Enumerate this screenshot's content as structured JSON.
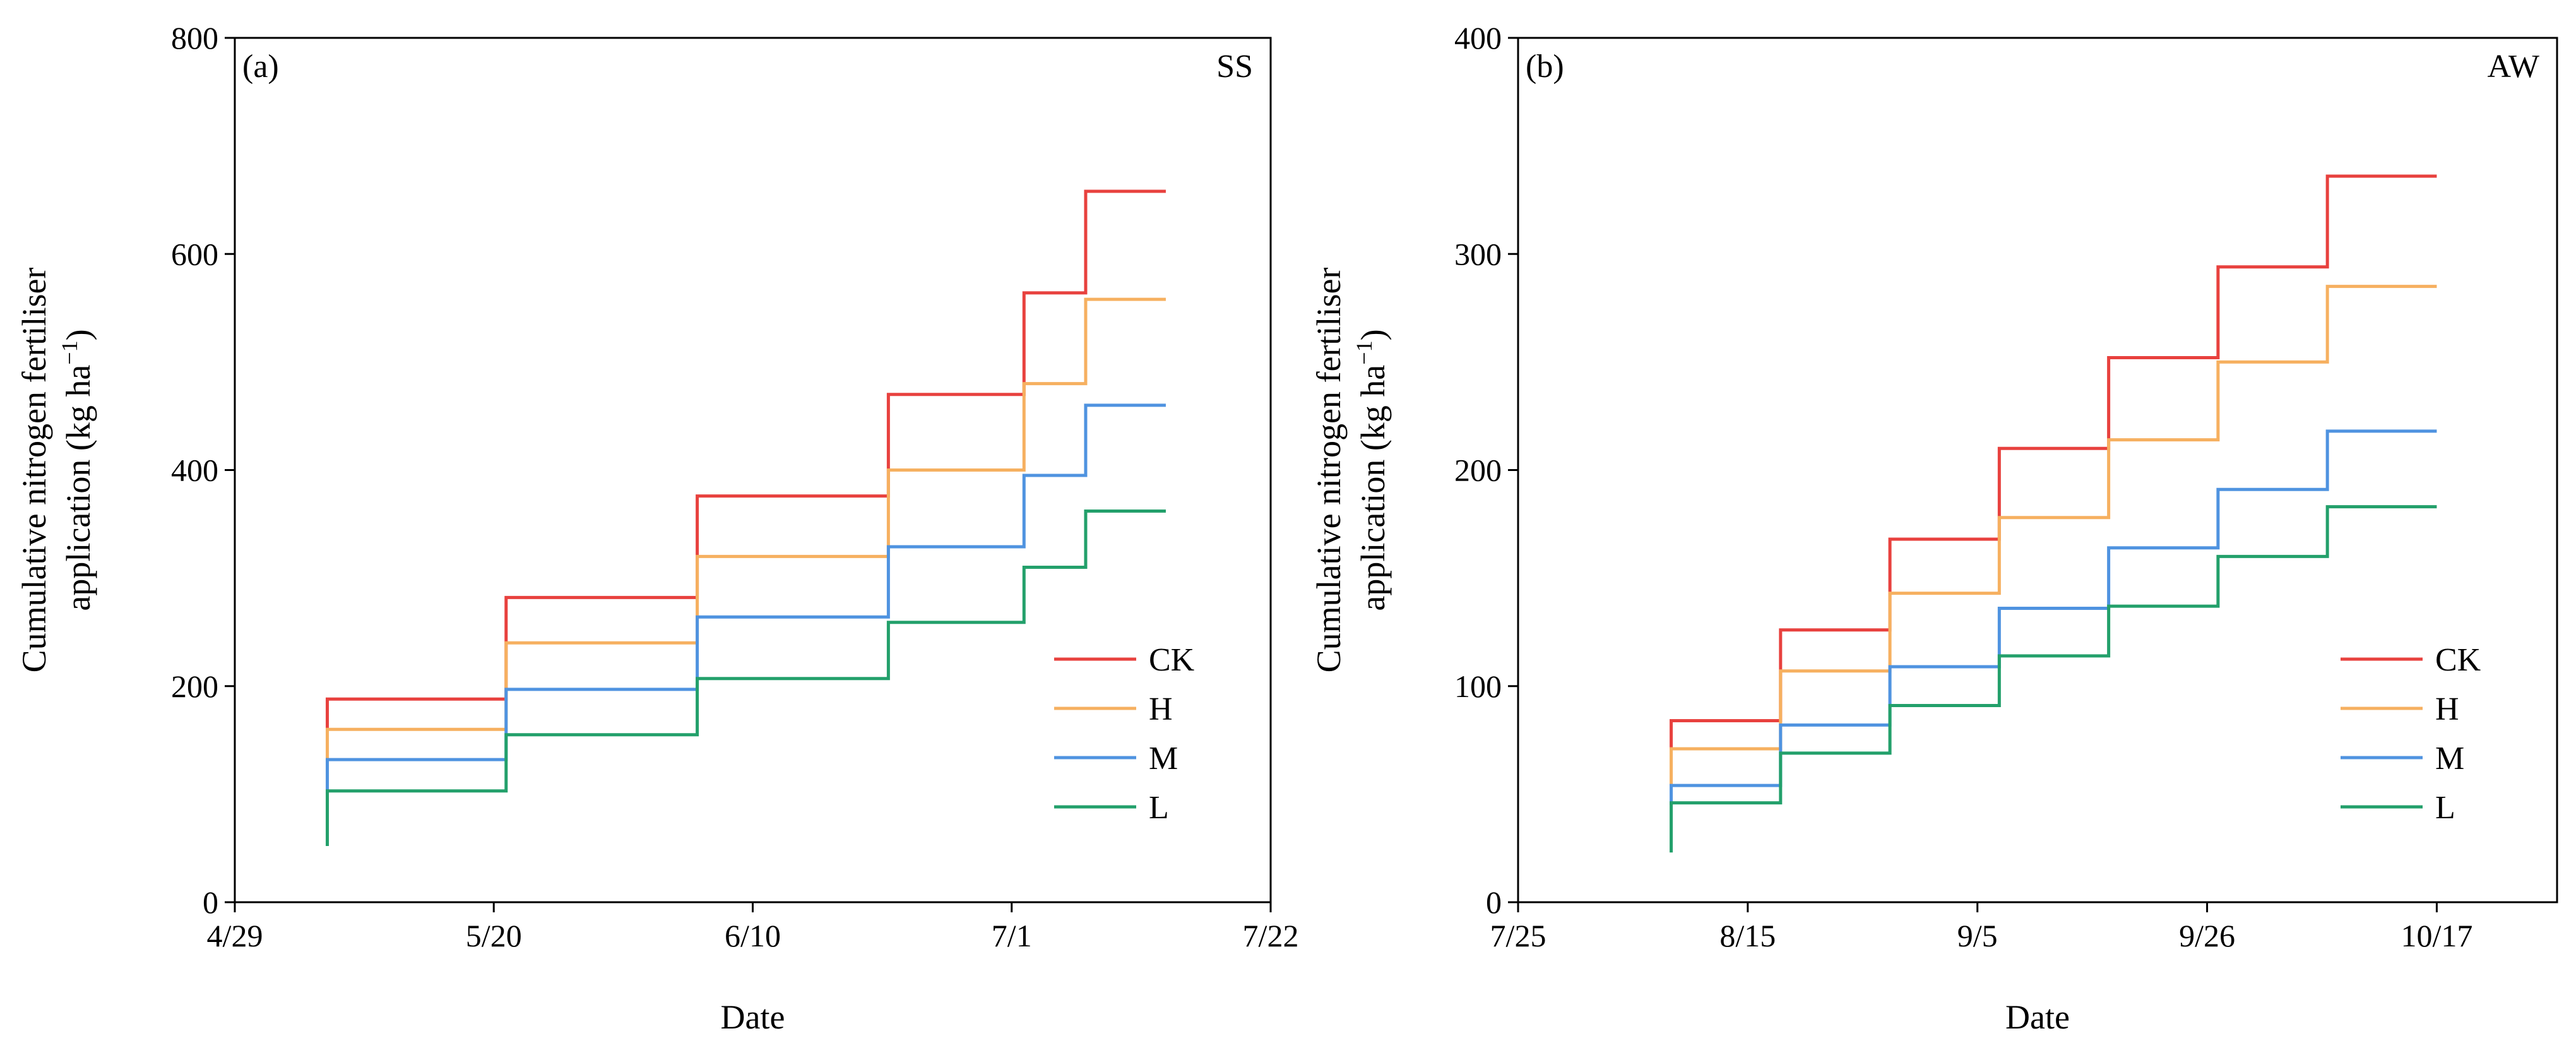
{
  "chart_data": [
    {
      "type": "line",
      "step": true,
      "panel_label": "(a)",
      "title": "SS",
      "xlabel": "Date",
      "ylabel_line1": "Cumulative nitrogen fertiliser",
      "ylabel_line2": "application (kg ha",
      "ylabel_sup": "−1",
      "ylabel_close": ")",
      "xlim": [
        0,
        84
      ],
      "ylim": [
        0,
        800
      ],
      "x_ticks": [
        0,
        21,
        42,
        63,
        84
      ],
      "x_tick_labels": [
        "4/29",
        "5/20",
        "6/10",
        "7/1",
        "7/22"
      ],
      "y_ticks": [
        0,
        200,
        400,
        600,
        800
      ],
      "y_tick_labels": [
        "0",
        "200",
        "400",
        "600",
        "800"
      ],
      "legend": [
        "CK",
        "H",
        "M",
        "L"
      ],
      "legend_position": "lower-right",
      "series": [
        {
          "name": "CK",
          "color": "#e8413e",
          "x_start": 7.5,
          "x_end": 75.5,
          "start_value": 160,
          "steps": [
            [
              7.5,
              188
            ],
            [
              22,
              282
            ],
            [
              37.5,
              376
            ],
            [
              53,
              470
            ],
            [
              64,
              564
            ],
            [
              69,
              658
            ]
          ]
        },
        {
          "name": "H",
          "color": "#f6b060",
          "x_start": 7.5,
          "x_end": 75.5,
          "start_value": 130,
          "steps": [
            [
              7.5,
              160
            ],
            [
              22,
              240
            ],
            [
              37.5,
              320
            ],
            [
              53,
              400
            ],
            [
              64,
              480
            ],
            [
              69,
              558
            ]
          ]
        },
        {
          "name": "M",
          "color": "#4f93e0",
          "x_start": 7.5,
          "x_end": 75.5,
          "start_value": 100,
          "steps": [
            [
              7.5,
              132
            ],
            [
              22,
              197
            ],
            [
              37.5,
              264
            ],
            [
              53,
              329
            ],
            [
              64,
              395
            ],
            [
              69,
              460
            ]
          ]
        },
        {
          "name": "L",
          "color": "#23a06b",
          "x_start": 7.5,
          "x_end": 75.5,
          "start_value": 52,
          "steps": [
            [
              7.5,
              103
            ],
            [
              22,
              155
            ],
            [
              37.5,
              207
            ],
            [
              53,
              259
            ],
            [
              64,
              310
            ],
            [
              69,
              362
            ]
          ]
        }
      ]
    },
    {
      "type": "line",
      "step": true,
      "panel_label": "(b)",
      "title": "AW",
      "xlabel": "Date",
      "ylabel_line1": "Cumulative nitrogen fertiliser",
      "ylabel_line2": "application (kg ha",
      "ylabel_sup": "−1",
      "ylabel_close": ")",
      "xlim": [
        0,
        95
      ],
      "ylim": [
        0,
        400
      ],
      "x_ticks": [
        0,
        21,
        42,
        63,
        84
      ],
      "x_tick_labels": [
        "7/25",
        "8/15",
        "9/5",
        "9/26",
        "10/17"
      ],
      "y_ticks": [
        0,
        100,
        200,
        300,
        400
      ],
      "y_tick_labels": [
        "0",
        "100",
        "200",
        "300",
        "400"
      ],
      "legend": [
        "CK",
        "H",
        "M",
        "L"
      ],
      "legend_position": "lower-right",
      "series": [
        {
          "name": "CK",
          "color": "#e8413e",
          "x_start": 14,
          "x_end": 84,
          "start_value": 71,
          "steps": [
            [
              14,
              84
            ],
            [
              24,
              126
            ],
            [
              34,
              168
            ],
            [
              44,
              210
            ],
            [
              54,
              252
            ],
            [
              64,
              294
            ],
            [
              74,
              336
            ]
          ]
        },
        {
          "name": "H",
          "color": "#f6b060",
          "x_start": 14,
          "x_end": 84,
          "start_value": 54,
          "steps": [
            [
              14,
              71
            ],
            [
              24,
              107
            ],
            [
              34,
              143
            ],
            [
              44,
              178
            ],
            [
              54,
              214
            ],
            [
              64,
              250
            ],
            [
              74,
              285
            ]
          ]
        },
        {
          "name": "M",
          "color": "#4f93e0",
          "x_start": 14,
          "x_end": 84,
          "start_value": 45,
          "steps": [
            [
              14,
              54
            ],
            [
              24,
              82
            ],
            [
              34,
              109
            ],
            [
              44,
              136
            ],
            [
              54,
              164
            ],
            [
              64,
              191
            ],
            [
              74,
              218
            ]
          ]
        },
        {
          "name": "L",
          "color": "#23a06b",
          "x_start": 14,
          "x_end": 84,
          "start_value": 23,
          "steps": [
            [
              14,
              46
            ],
            [
              24,
              69
            ],
            [
              34,
              91
            ],
            [
              44,
              114
            ],
            [
              54,
              137
            ],
            [
              64,
              160
            ],
            [
              74,
              183
            ]
          ]
        }
      ]
    }
  ]
}
